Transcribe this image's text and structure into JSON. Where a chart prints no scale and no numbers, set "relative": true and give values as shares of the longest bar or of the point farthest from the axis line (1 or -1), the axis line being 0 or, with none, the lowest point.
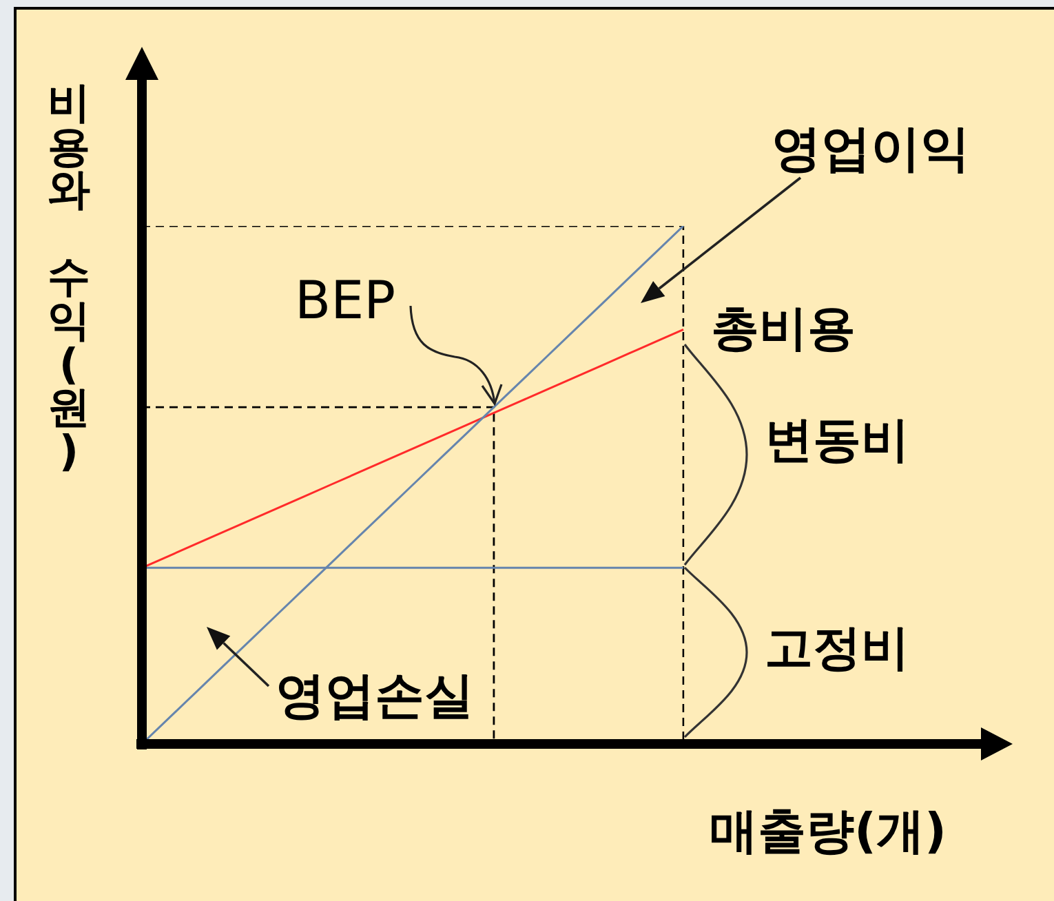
{
  "chart_data": {
    "type": "line",
    "relative": true,
    "xlabel": "매출량(개)",
    "ylabel": "비용와 수익(원)",
    "tick_labels": false,
    "marker": "none",
    "line_style": "solid",
    "categories": [
      null,
      null,
      null,
      null,
      null,
      null,
      null,
      null,
      null,
      null,
      null,
      null,
      null,
      null,
      null,
      null,
      null,
      null,
      null,
      null,
      null
    ],
    "series": [
      {
        "color": "#6685ad",
        "values": [
          0,
          0.05,
          0.1,
          0.15,
          0.2,
          0.25,
          0.3,
          0.35,
          0.4,
          0.45,
          0.5,
          0.55,
          0.6,
          0.65,
          0.7,
          0.75,
          0.8,
          0.85,
          0.9,
          0.95,
          1
        ]
      },
      {
        "color": "#ff2a2a",
        "values": [
          0.34,
          0.363,
          0.386,
          0.409,
          0.432,
          0.455,
          0.478,
          0.501,
          0.524,
          0.547,
          0.57,
          0.593,
          0.616,
          0.639,
          0.662,
          0.685,
          0.708,
          0.731,
          0.754,
          0.777,
          0.8
        ]
      },
      {
        "color": "#6685ad",
        "values": [
          0.34,
          0.34,
          0.34,
          0.34,
          0.34,
          0.34,
          0.34,
          0.34,
          0.34,
          0.34,
          0.34,
          0.34,
          0.34,
          0.34,
          0.34,
          0.34,
          0.34,
          0.34,
          0.34,
          0.34,
          0.34
        ]
      },
      {
        "type": "step",
        "color": "#000000",
        "line_style": "dashed",
        "values": [
          1,
          1,
          1,
          1,
          1,
          1,
          1,
          1,
          1,
          1,
          1,
          1,
          1,
          1,
          1,
          1,
          1,
          1,
          1,
          1,
          0
        ]
      },
      {
        "type": "step",
        "color": "#000000",
        "line_style": "dashed",
        "values": [
          0.65,
          0.65,
          0.65,
          0.65,
          0.65,
          0.65,
          0.65,
          0.65,
          0.65,
          0.65,
          0.65,
          0.65,
          0.65,
          0,
          null,
          null,
          null,
          null,
          null,
          null,
          null
        ]
      }
    ],
    "annotations": [
      "BEP",
      "총비용",
      "영업이익",
      "영업손실",
      "변동비",
      "고정비"
    ]
  }
}
